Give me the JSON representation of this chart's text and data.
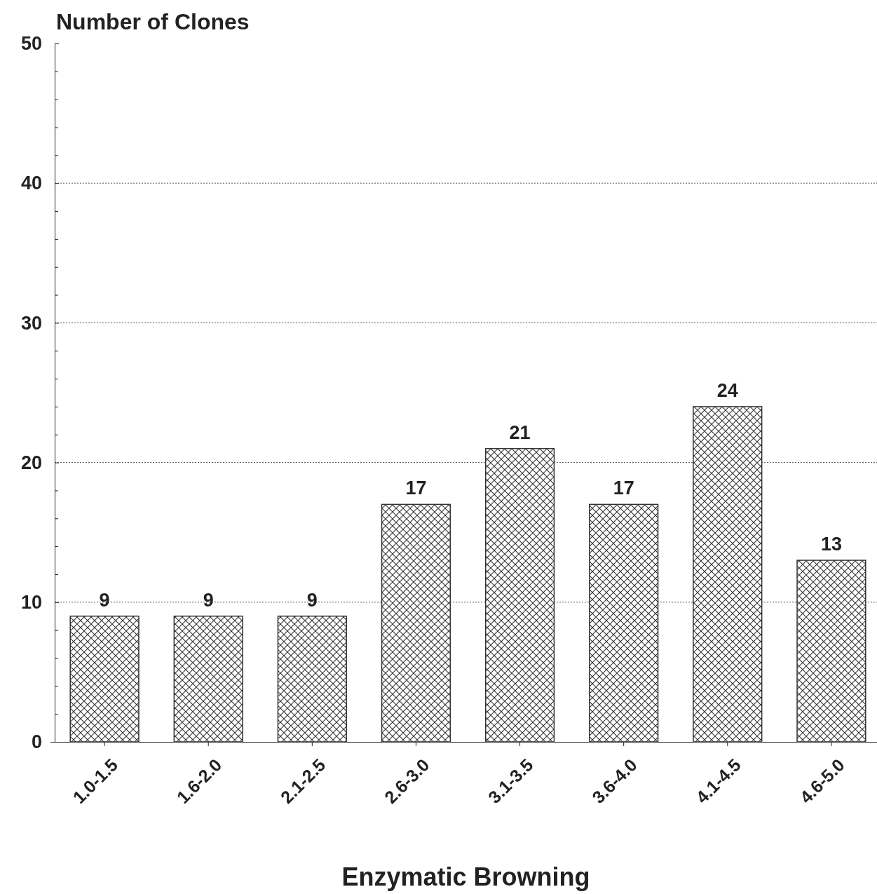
{
  "chart_data": {
    "type": "bar",
    "ylabel": "Number of Clones",
    "xlabel": "Enzymatic Browning",
    "categories": [
      "1.0-1.5",
      "1.6-2.0",
      "2.1-2.5",
      "2.6-3.0",
      "3.1-3.5",
      "3.6-4.0",
      "4.1-4.5",
      "4.6-5.0"
    ],
    "values": [
      9,
      9,
      9,
      17,
      21,
      17,
      24,
      13
    ],
    "color": "#333333",
    "ylim": [
      0,
      50
    ],
    "yticks": [
      0,
      {
        "value": 2,
        "label": null
      },
      {
        "value": 4,
        "label": null
      },
      {
        "value": 6,
        "label": null
      },
      {
        "value": 8,
        "label": null
      },
      10,
      {
        "value": 12,
        "label": null
      },
      {
        "value": 14,
        "label": null
      },
      {
        "value": 16,
        "label": null
      },
      {
        "value": 18,
        "label": null
      },
      20,
      {
        "value": 22,
        "label": null
      },
      {
        "value": 24,
        "label": null
      },
      {
        "value": 26,
        "label": null
      },
      {
        "value": 28,
        "label": null
      },
      30,
      {
        "value": 32,
        "label": null
      },
      {
        "value": 34,
        "label": null
      },
      {
        "value": 36,
        "label": null
      },
      {
        "value": 38,
        "label": null
      },
      40,
      {
        "value": 42,
        "label": null
      },
      {
        "value": 44,
        "label": null
      },
      {
        "value": 46,
        "label": null
      },
      {
        "value": 48,
        "label": null
      },
      50
    ],
    "grid": "y",
    "data_labels": true
  }
}
